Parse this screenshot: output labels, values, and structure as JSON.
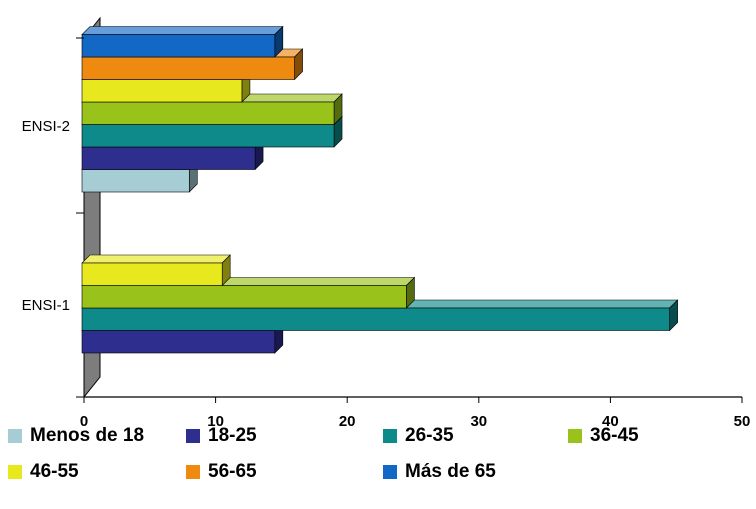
{
  "chart_data": {
    "type": "bar",
    "orientation": "horizontal",
    "style": "3d",
    "categories": [
      "ENSI-1",
      "ENSI-2"
    ],
    "xlim": [
      0,
      50
    ],
    "xticks": [
      0,
      10,
      20,
      30,
      40,
      50
    ],
    "xtick_labels": [
      "0",
      "10",
      "20",
      "30",
      "40",
      "50"
    ],
    "grid": false,
    "legend_position": "bottom",
    "series": [
      {
        "name": "Menos de 18",
        "color": "#A6CDD4",
        "values": [
          null,
          8
        ]
      },
      {
        "name": "18-25",
        "color": "#2E2E8F",
        "values": [
          14.5,
          13
        ]
      },
      {
        "name": "26-35",
        "color": "#0F8A8A",
        "values": [
          44.5,
          19
        ]
      },
      {
        "name": "36-45",
        "color": "#99C21A",
        "values": [
          24.5,
          19
        ]
      },
      {
        "name": "46-55",
        "color": "#E8E81F",
        "values": [
          10.5,
          12
        ]
      },
      {
        "name": "56-65",
        "color": "#EE8A10",
        "values": [
          null,
          16
        ]
      },
      {
        "name": "Más de 65",
        "color": "#1368C6",
        "values": [
          null,
          14.5
        ]
      }
    ]
  }
}
